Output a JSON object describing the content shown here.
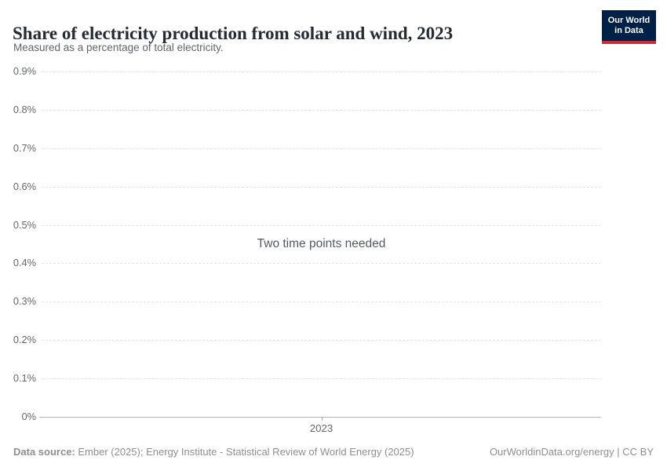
{
  "header": {
    "title": "Share of electricity production from solar and wind, 2023",
    "subtitle": "Measured as a percentage of total electricity.",
    "logo": {
      "line1": "Our World",
      "line2": "in Data",
      "background_color": "#002147",
      "accent_color": "#c82c3c"
    }
  },
  "chart_data": {
    "type": "line",
    "title": "Share of electricity production from solar and wind, 2023",
    "subtitle": "Measured as a percentage of total electricity.",
    "empty_state_message": "Two time points needed",
    "series": [],
    "x_ticks": [
      "2023"
    ],
    "y_ticks": [
      {
        "value": 0.0,
        "label": "0%"
      },
      {
        "value": 0.1,
        "label": "0.1%"
      },
      {
        "value": 0.2,
        "label": "0.2%"
      },
      {
        "value": 0.3,
        "label": "0.3%"
      },
      {
        "value": 0.4,
        "label": "0.4%"
      },
      {
        "value": 0.5,
        "label": "0.5%"
      },
      {
        "value": 0.6,
        "label": "0.6%"
      },
      {
        "value": 0.7,
        "label": "0.7%"
      },
      {
        "value": 0.8,
        "label": "0.8%"
      },
      {
        "value": 0.9,
        "label": "0.9%"
      }
    ],
    "ylim": [
      0,
      0.9
    ],
    "xlabel": "",
    "ylabel": "",
    "grid": "horizontal-dashed",
    "legend": "none"
  },
  "footer": {
    "datasource_label": "Data source:",
    "datasource_text": " Ember (2025); Energy Institute - Statistical Review of World Energy (2025)",
    "credit": "OurWorldinData.org/energy | CC BY"
  },
  "colors": {
    "title_text": "#252b33",
    "subtitle_text": "#61656a",
    "tick_text": "#63676d",
    "gridline": "#e2e2e2",
    "axis_line": "#b4b4b4",
    "footer_text": "#8b8f94",
    "background": "#ffffff"
  }
}
